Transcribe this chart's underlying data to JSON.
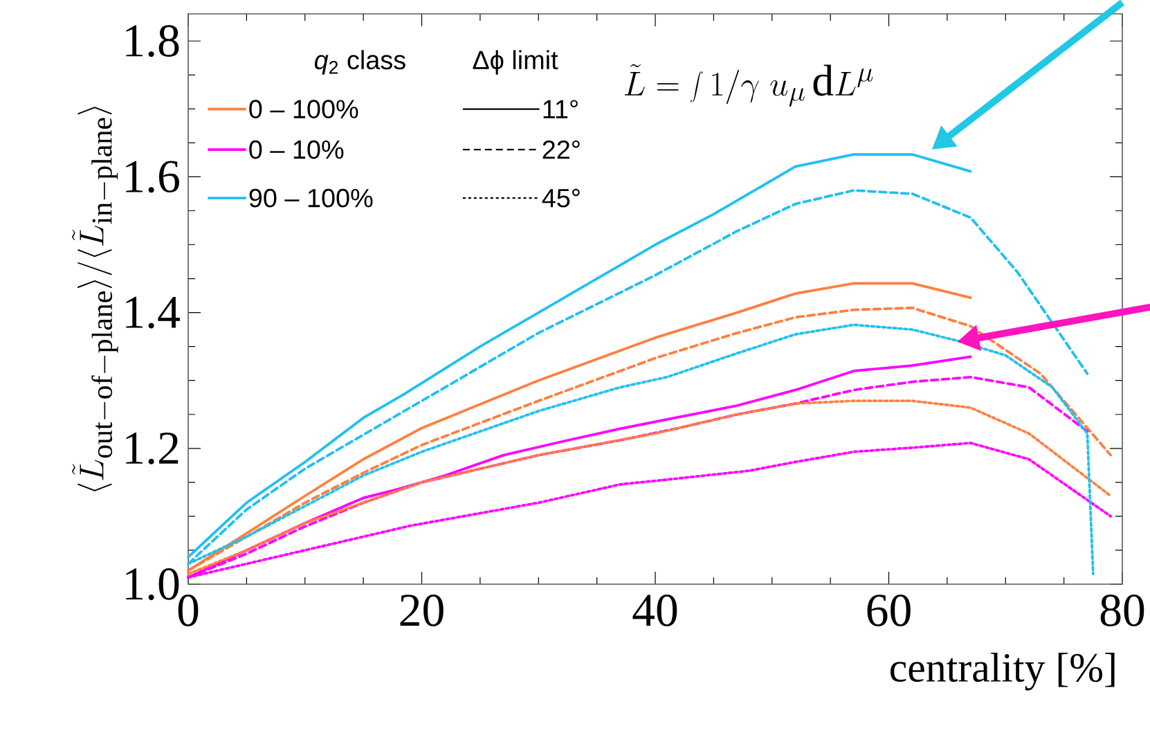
{
  "chart_data": {
    "type": "line",
    "xlabel": "centrality [%]",
    "ylabel": "\\langle \\tilde{L}_{\\mathrm{out{-}of{-}plane}} \\rangle / \\langle \\tilde{L}_{\\mathrm{in{-}plane}} \\rangle",
    "xlim": [
      0,
      80
    ],
    "ylim": [
      1.0,
      1.84
    ],
    "xticks": [
      0,
      20,
      40,
      60,
      80
    ],
    "yticks": [
      {
        "value": 1.0,
        "label": "1.0"
      },
      1.2,
      1.4,
      1.6,
      1.8
    ],
    "legend": "top left",
    "legend_title": "*q*$_{2}$ class",
    "grid": false,
    "marker": "none",
    "annotations": [
      "Δϕ limit",
      "11°",
      "22°",
      "45°",
      "\\tilde{L} = \\int 1/\\gamma\\; u_\\mu \\, \\mathrm{d}L^\\mu"
    ],
    "series": [
      {
        "name": "0 – 100%",
        "color": "#ff8040",
        "line_style": "solid",
        "x": [
          0,
          5,
          10,
          15,
          20,
          30,
          40,
          47,
          52,
          57,
          62,
          67
        ],
        "values": [
          1.02,
          1.075,
          1.13,
          1.184,
          1.23,
          1.3,
          1.363,
          1.4,
          1.428,
          1.443,
          1.443,
          1.422
        ]
      },
      {
        "name": "0 – 10%",
        "color": "#ff00ff",
        "line_style": "solid",
        "x": [
          0,
          5,
          10,
          15,
          18,
          22,
          27,
          32,
          37,
          42,
          47,
          52,
          57,
          62,
          67
        ],
        "values": [
          1.01,
          1.05,
          1.09,
          1.127,
          1.14,
          1.16,
          1.19,
          1.21,
          1.229,
          1.246,
          1.263,
          1.286,
          1.314,
          1.322,
          1.335
        ]
      },
      {
        "name": "90 – 100%",
        "color": "#20c0f0",
        "line_style": "solid",
        "x": [
          0,
          5,
          10,
          15,
          18.5,
          25,
          30,
          35,
          40,
          45,
          52,
          57,
          62,
          67
        ],
        "values": [
          1.04,
          1.12,
          1.18,
          1.245,
          1.28,
          1.35,
          1.4,
          1.45,
          1.5,
          1.545,
          1.615,
          1.633,
          1.633,
          1.608
        ]
      },
      {
        "color": "#ff8040",
        "line_style": "dashed",
        "x": [
          0,
          5,
          10,
          15,
          20,
          30,
          40,
          47,
          52,
          57,
          62,
          67,
          73,
          79
        ],
        "values": [
          1.02,
          1.07,
          1.12,
          1.164,
          1.205,
          1.27,
          1.333,
          1.37,
          1.393,
          1.404,
          1.407,
          1.38,
          1.31,
          1.19
        ]
      },
      {
        "color": "#ff00ff",
        "line_style": "dashed",
        "x": [
          0,
          5,
          10,
          15,
          20,
          30,
          37,
          42,
          47,
          52,
          57,
          62,
          67,
          72,
          77
        ],
        "values": [
          1.01,
          1.045,
          1.085,
          1.12,
          1.15,
          1.19,
          1.212,
          1.23,
          1.25,
          1.266,
          1.286,
          1.298,
          1.305,
          1.29,
          1.225
        ]
      },
      {
        "color": "#20c0f0",
        "line_style": "dashed",
        "x": [
          0,
          5,
          10,
          15,
          20,
          30,
          40,
          47,
          52,
          57,
          62,
          67,
          71,
          77
        ],
        "values": [
          1.03,
          1.11,
          1.17,
          1.22,
          1.27,
          1.37,
          1.455,
          1.52,
          1.56,
          1.58,
          1.575,
          1.54,
          1.46,
          1.31
        ]
      },
      {
        "color": "#ff8040",
        "line_style": "dotted",
        "x": [
          0,
          5,
          10,
          15,
          20,
          30,
          40,
          47,
          52,
          57,
          62,
          67,
          72,
          79
        ],
        "values": [
          1.015,
          1.05,
          1.09,
          1.12,
          1.15,
          1.19,
          1.222,
          1.25,
          1.266,
          1.27,
          1.27,
          1.26,
          1.222,
          1.13
        ]
      },
      {
        "color": "#ff00ff",
        "line_style": "dotted",
        "x": [
          0,
          5,
          10,
          19,
          30,
          37,
          41,
          48,
          52,
          57,
          62,
          67,
          72,
          79
        ],
        "values": [
          1.01,
          1.03,
          1.05,
          1.086,
          1.12,
          1.147,
          1.154,
          1.167,
          1.18,
          1.195,
          1.201,
          1.208,
          1.184,
          1.1
        ]
      },
      {
        "color": "#20c0f0",
        "line_style": "dotted",
        "x": [
          0,
          5,
          10,
          15,
          20,
          30,
          37,
          41,
          47,
          52,
          57,
          62,
          66,
          70,
          74,
          77,
          77.5
        ],
        "values": [
          1.03,
          1.07,
          1.115,
          1.16,
          1.195,
          1.255,
          1.29,
          1.305,
          1.34,
          1.368,
          1.382,
          1.375,
          1.358,
          1.337,
          1.29,
          1.222,
          1.015
        ]
      }
    ]
  }
}
